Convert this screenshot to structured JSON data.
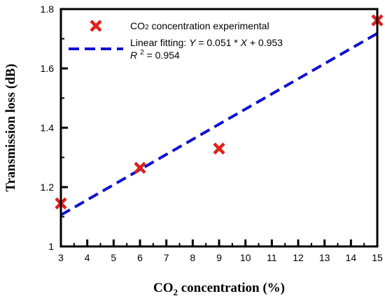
{
  "chart_data": {
    "type": "scatter",
    "xlabel_parts": [
      "CO",
      "2",
      " concentration (%)"
    ],
    "ylabel": "Transmission loss (dB)",
    "xlim": [
      3,
      15
    ],
    "ylim": [
      1.0,
      1.8
    ],
    "x_ticks": [
      3,
      4,
      5,
      6,
      7,
      8,
      9,
      10,
      11,
      12,
      13,
      14,
      15
    ],
    "y_ticks": [
      "1",
      "1.2",
      "1.4",
      "1.6",
      "1.8"
    ],
    "y_tick_values": [
      1.0,
      1.2,
      1.4,
      1.6,
      1.8
    ],
    "grid": false,
    "legend_position": "top-left",
    "series": [
      {
        "name_parts": [
          "CO",
          "2",
          " concentration experimental"
        ],
        "marker": "x",
        "color": "#e0201b",
        "x": [
          3,
          6,
          9,
          15
        ],
        "y": [
          1.145,
          1.265,
          1.33,
          1.762
        ]
      },
      {
        "name_parts": [
          "Linear fitting: ",
          "Y",
          " = 0.051 * ",
          "X",
          " + 0.953"
        ],
        "style": "dashed-line",
        "color": "#1010d0",
        "slope": 0.051,
        "intercept": 0.953,
        "x": [
          3,
          15
        ],
        "y": [
          1.106,
          1.718
        ]
      }
    ],
    "annotation_parts": [
      "R",
      "2",
      " = 0.954"
    ]
  }
}
